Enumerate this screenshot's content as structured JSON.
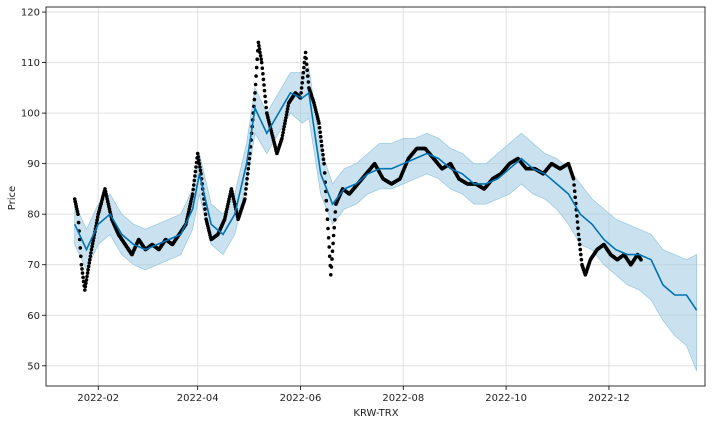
{
  "chart_data": {
    "type": "line",
    "title": "",
    "xlabel": "KRW-TRX",
    "ylabel": "Price",
    "xlim": [
      "2022-01-01",
      "2023-01-27"
    ],
    "ylim": [
      46,
      121
    ],
    "x_ticks": [
      "2022-02-01",
      "2022-04-01",
      "2022-06-01",
      "2022-08-01",
      "2022-10-01",
      "2022-12-01"
    ],
    "x_tick_labels": [
      "2022-02",
      "2022-04",
      "2022-06",
      "2022-08",
      "2022-10",
      "2022-12"
    ],
    "y_ticks": [
      50,
      60,
      70,
      80,
      90,
      100,
      110,
      120
    ],
    "grid": true,
    "colors": {
      "forecast": "#0072B2",
      "interval": "#9ecae1",
      "observed": "#000000"
    },
    "series": [
      {
        "kind": "forecast_line",
        "x": [
          "2022-01-18",
          "2022-01-25",
          "2022-02-01",
          "2022-02-08",
          "2022-02-15",
          "2022-02-22",
          "2022-03-01",
          "2022-03-08",
          "2022-03-15",
          "2022-03-22",
          "2022-03-29",
          "2022-04-02",
          "2022-04-09",
          "2022-04-16",
          "2022-04-23",
          "2022-04-30",
          "2022-05-05",
          "2022-05-12",
          "2022-05-19",
          "2022-05-26",
          "2022-06-02",
          "2022-06-06",
          "2022-06-13",
          "2022-06-20",
          "2022-06-27",
          "2022-07-04",
          "2022-07-11",
          "2022-07-18",
          "2022-07-25",
          "2022-08-01",
          "2022-08-08",
          "2022-08-15",
          "2022-08-22",
          "2022-08-29",
          "2022-09-05",
          "2022-09-12",
          "2022-09-19",
          "2022-09-26",
          "2022-10-03",
          "2022-10-10",
          "2022-10-17",
          "2022-10-24",
          "2022-10-31",
          "2022-11-07",
          "2022-11-14",
          "2022-11-21",
          "2022-11-28",
          "2022-12-05",
          "2022-12-12",
          "2022-12-19",
          "2022-12-26",
          "2023-01-02",
          "2023-01-09",
          "2023-01-16",
          "2023-01-22"
        ],
        "y": [
          78,
          73,
          78,
          80,
          76,
          74,
          73,
          74,
          75,
          76,
          81,
          88,
          78,
          76,
          80,
          90,
          101,
          96,
          100,
          104,
          103,
          104,
          88,
          82,
          85,
          86,
          88,
          89,
          89,
          90,
          91,
          92,
          91,
          89,
          88,
          86,
          86,
          87,
          89,
          91,
          89,
          88,
          86,
          84,
          80,
          78,
          75,
          73,
          72,
          72,
          71,
          66,
          64,
          64,
          61
        ]
      },
      {
        "kind": "uncertainty_upper",
        "x": [
          "2022-01-18",
          "2022-01-25",
          "2022-02-01",
          "2022-02-08",
          "2022-02-15",
          "2022-02-22",
          "2022-03-01",
          "2022-03-08",
          "2022-03-15",
          "2022-03-22",
          "2022-03-29",
          "2022-04-02",
          "2022-04-09",
          "2022-04-16",
          "2022-04-23",
          "2022-04-30",
          "2022-05-05",
          "2022-05-12",
          "2022-05-19",
          "2022-05-26",
          "2022-06-02",
          "2022-06-06",
          "2022-06-13",
          "2022-06-20",
          "2022-06-27",
          "2022-07-04",
          "2022-07-11",
          "2022-07-18",
          "2022-07-25",
          "2022-08-01",
          "2022-08-08",
          "2022-08-15",
          "2022-08-22",
          "2022-08-29",
          "2022-09-05",
          "2022-09-12",
          "2022-09-19",
          "2022-09-26",
          "2022-10-03",
          "2022-10-10",
          "2022-10-17",
          "2022-10-24",
          "2022-10-31",
          "2022-11-07",
          "2022-11-14",
          "2022-11-21",
          "2022-11-28",
          "2022-12-05",
          "2022-12-12",
          "2022-12-19",
          "2022-12-26",
          "2023-01-02",
          "2023-01-09",
          "2023-01-16",
          "2023-01-22"
        ],
        "y": [
          82,
          77,
          82,
          84,
          80,
          78,
          77,
          78,
          79,
          80,
          85,
          92,
          82,
          80,
          84,
          94,
          105,
          100,
          104,
          108,
          108,
          109,
          93,
          86,
          89,
          90,
          92,
          94,
          94,
          95,
          95,
          96,
          95,
          93,
          92,
          90,
          90,
          92,
          94,
          96,
          94,
          92,
          91,
          89,
          86,
          83,
          81,
          79,
          78,
          77,
          76,
          73,
          72,
          71,
          72
        ]
      },
      {
        "kind": "uncertainty_lower",
        "x": [
          "2022-01-18",
          "2022-01-25",
          "2022-02-01",
          "2022-02-08",
          "2022-02-15",
          "2022-02-22",
          "2022-03-01",
          "2022-03-08",
          "2022-03-15",
          "2022-03-22",
          "2022-03-29",
          "2022-04-02",
          "2022-04-09",
          "2022-04-16",
          "2022-04-23",
          "2022-04-30",
          "2022-05-05",
          "2022-05-12",
          "2022-05-19",
          "2022-05-26",
          "2022-06-02",
          "2022-06-06",
          "2022-06-13",
          "2022-06-20",
          "2022-06-27",
          "2022-07-04",
          "2022-07-11",
          "2022-07-18",
          "2022-07-25",
          "2022-08-01",
          "2022-08-08",
          "2022-08-15",
          "2022-08-22",
          "2022-08-29",
          "2022-09-05",
          "2022-09-12",
          "2022-09-19",
          "2022-09-26",
          "2022-10-03",
          "2022-10-10",
          "2022-10-17",
          "2022-10-24",
          "2022-10-31",
          "2022-11-07",
          "2022-11-14",
          "2022-11-21",
          "2022-11-28",
          "2022-12-05",
          "2022-12-12",
          "2022-12-19",
          "2022-12-26",
          "2023-01-02",
          "2023-01-09",
          "2023-01-16",
          "2023-01-22"
        ],
        "y": [
          74,
          69,
          74,
          76,
          72,
          70,
          69,
          70,
          71,
          72,
          77,
          84,
          74,
          72,
          76,
          86,
          96,
          92,
          96,
          100,
          98,
          99,
          84,
          78,
          81,
          82,
          84,
          85,
          85,
          86,
          87,
          88,
          87,
          85,
          84,
          82,
          82,
          83,
          84,
          86,
          84,
          83,
          81,
          78,
          74,
          73,
          70,
          68,
          66,
          65,
          63,
          59,
          56,
          54,
          49
        ]
      },
      {
        "kind": "observed",
        "x": [
          "2022-01-18",
          "2022-01-20",
          "2022-01-22",
          "2022-01-24",
          "2022-01-26",
          "2022-01-28",
          "2022-02-01",
          "2022-02-05",
          "2022-02-09",
          "2022-02-13",
          "2022-02-17",
          "2022-02-21",
          "2022-02-25",
          "2022-03-01",
          "2022-03-05",
          "2022-03-09",
          "2022-03-13",
          "2022-03-17",
          "2022-03-21",
          "2022-03-25",
          "2022-03-29",
          "2022-04-01",
          "2022-04-03",
          "2022-04-06",
          "2022-04-09",
          "2022-04-13",
          "2022-04-17",
          "2022-04-21",
          "2022-04-25",
          "2022-04-29",
          "2022-05-02",
          "2022-05-05",
          "2022-05-07",
          "2022-05-09",
          "2022-05-12",
          "2022-05-15",
          "2022-05-18",
          "2022-05-21",
          "2022-05-25",
          "2022-05-29",
          "2022-06-01",
          "2022-06-04",
          "2022-06-06",
          "2022-06-09",
          "2022-06-12",
          "2022-06-15",
          "2022-06-17",
          "2022-06-19",
          "2022-06-22",
          "2022-06-26",
          "2022-06-30",
          "2022-07-05",
          "2022-07-10",
          "2022-07-15",
          "2022-07-20",
          "2022-07-25",
          "2022-07-30",
          "2022-08-04",
          "2022-08-09",
          "2022-08-14",
          "2022-08-19",
          "2022-08-24",
          "2022-08-29",
          "2022-09-03",
          "2022-09-08",
          "2022-09-13",
          "2022-09-18",
          "2022-09-23",
          "2022-09-28",
          "2022-10-03",
          "2022-10-08",
          "2022-10-13",
          "2022-10-18",
          "2022-10-23",
          "2022-10-28",
          "2022-11-02",
          "2022-11-07",
          "2022-11-10",
          "2022-11-13",
          "2022-11-15",
          "2022-11-17",
          "2022-11-20",
          "2022-11-24",
          "2022-11-28",
          "2022-12-02",
          "2022-12-06",
          "2022-12-10",
          "2022-12-14",
          "2022-12-18",
          "2022-12-20"
        ],
        "y": [
          83,
          80,
          70,
          65,
          69,
          73,
          80,
          85,
          79,
          76,
          74,
          72,
          75,
          73,
          74,
          73,
          75,
          74,
          76,
          78,
          84,
          92,
          88,
          79,
          75,
          76,
          79,
          85,
          79,
          83,
          92,
          104,
          114,
          110,
          100,
          96,
          92,
          95,
          102,
          104,
          103,
          112,
          105,
          102,
          98,
          90,
          79,
          68,
          82,
          85,
          84,
          86,
          88,
          90,
          87,
          86,
          87,
          91,
          93,
          93,
          91,
          89,
          90,
          87,
          86,
          86,
          85,
          87,
          88,
          90,
          91,
          89,
          89,
          88,
          90,
          89,
          90,
          87,
          76,
          70,
          68,
          71,
          73,
          74,
          72,
          71,
          72,
          70,
          72,
          71
        ]
      }
    ]
  }
}
